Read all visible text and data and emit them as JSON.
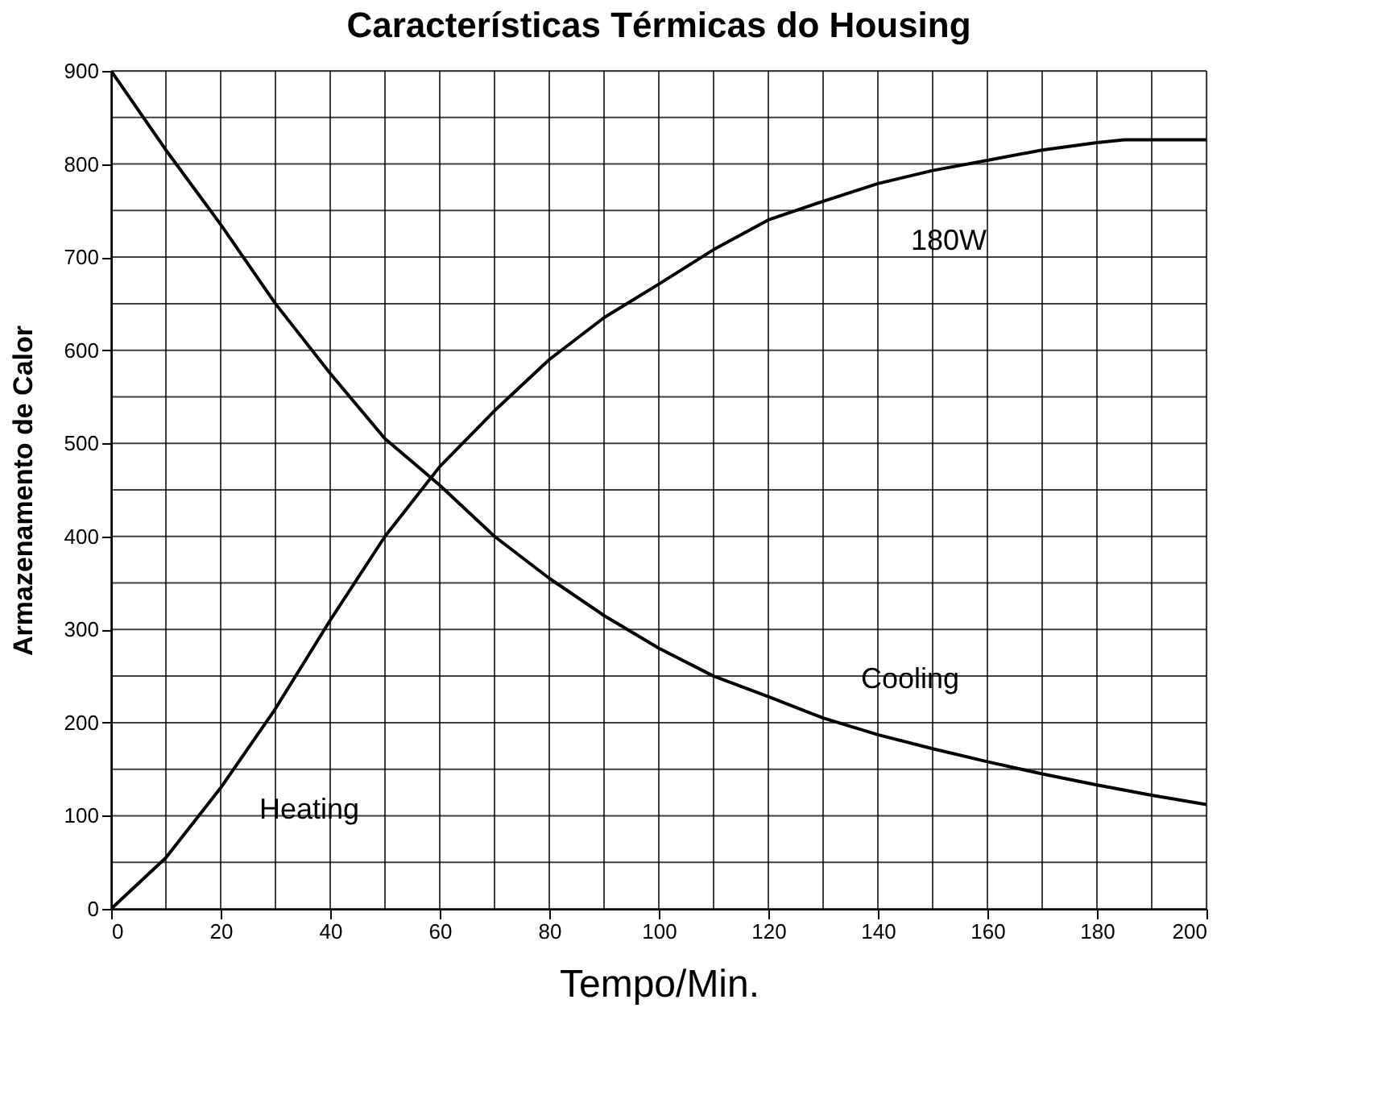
{
  "chart_data": {
    "type": "line",
    "title": "Características Térmicas do Housing",
    "xlabel": "Tempo/Min.",
    "ylabel": "Armazenamento de Calor",
    "x": [
      0,
      10,
      20,
      30,
      40,
      50,
      60,
      70,
      80,
      90,
      100,
      110,
      120,
      130,
      140,
      150,
      160,
      170,
      180,
      185,
      190,
      200
    ],
    "series": [
      {
        "name": "Heating",
        "color": "#000000",
        "values": [
          0,
          55,
          130,
          215,
          310,
          400,
          475,
          535,
          590,
          635,
          671,
          708,
          740,
          760,
          779,
          793,
          804,
          815,
          823,
          826,
          826,
          826
        ]
      },
      {
        "name": "Cooling",
        "color": "#000000",
        "x": [
          0,
          10,
          20,
          30,
          40,
          50,
          60,
          70,
          80,
          90,
          100,
          110,
          120,
          130,
          140,
          150,
          160,
          170,
          180,
          190,
          200
        ],
        "values": [
          900,
          815,
          735,
          650,
          575,
          505,
          455,
          400,
          355,
          315,
          280,
          250,
          228,
          205,
          187,
          172,
          158,
          145,
          133,
          122,
          112
        ]
      }
    ],
    "annotations": [
      "180W"
    ],
    "xlim": [
      0,
      200
    ],
    "xticks": [
      0,
      {
        "value": 10,
        "label": null
      },
      20,
      {
        "value": 30,
        "label": null
      },
      40,
      {
        "value": 50,
        "label": null
      },
      60,
      {
        "value": 70,
        "label": null
      },
      80,
      {
        "value": 90,
        "label": null
      },
      100,
      {
        "value": 110,
        "label": null
      },
      120,
      {
        "value": 130,
        "label": null
      },
      140,
      {
        "value": 150,
        "label": null
      },
      160,
      {
        "value": 170,
        "label": null
      },
      180,
      {
        "value": 190,
        "label": null
      },
      200
    ],
    "ylim": [
      0,
      900
    ],
    "yticks": [
      0,
      {
        "value": 50,
        "label": null
      },
      100,
      {
        "value": 150,
        "label": null
      },
      200,
      {
        "value": 250,
        "label": null
      },
      300,
      {
        "value": 350,
        "label": null
      },
      400,
      {
        "value": 450,
        "label": null
      },
      500,
      {
        "value": 550,
        "label": null
      },
      600,
      {
        "value": 650,
        "label": null
      },
      700,
      {
        "value": 750,
        "label": null
      },
      800,
      {
        "value": 850,
        "label": null
      },
      900
    ],
    "grid": true,
    "marker": "none",
    "line_style": "solid"
  }
}
